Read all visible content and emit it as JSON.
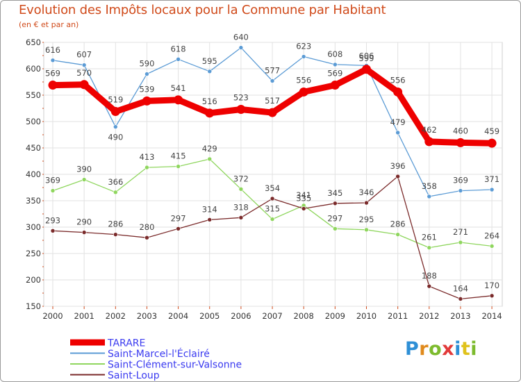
{
  "title": "Evolution des Impôts locaux pour la Commune par Habitant",
  "subtitle": "(en € et par an)",
  "brand": {
    "text": "Proxiti",
    "letter_colors": [
      "#2e8fd6",
      "#e08a1c",
      "#7dbb2e",
      "#e23a3a",
      "#2e8fd6",
      "#e0c21c",
      "#7dbb2e"
    ]
  },
  "chart_data": {
    "type": "line",
    "x": [
      "2000",
      "2001",
      "2002",
      "2003",
      "2004",
      "2005",
      "2006",
      "2007",
      "2008",
      "2009",
      "2010",
      "2011",
      "2012",
      "2013",
      "2014"
    ],
    "ylim": [
      150,
      650
    ],
    "yticks": [
      "150",
      "200",
      "250",
      "300",
      "350",
      "400",
      "450",
      "500",
      "550",
      "600",
      "650"
    ],
    "grid": true,
    "legend_position": "bottom-left",
    "series": [
      {
        "name": "Saint-Marcel-l'Éclairé",
        "color": "#5b9bd5",
        "values": [
          616,
          607,
          490,
          590,
          618,
          595,
          640,
          577,
          623,
          608,
          606,
          479,
          358,
          369,
          371
        ]
      },
      {
        "name": "Saint-Clément-sur-Valsonne",
        "color": "#8fd65e",
        "values": [
          369,
          390,
          366,
          413,
          415,
          429,
          372,
          315,
          341,
          297,
          295,
          286,
          261,
          271,
          264
        ]
      },
      {
        "name": "Saint-Loup",
        "color": "#7a2a2a",
        "values": [
          293,
          290,
          286,
          280,
          297,
          314,
          318,
          354,
          335,
          345,
          346,
          396,
          188,
          164,
          170
        ]
      },
      {
        "name": "TARARE",
        "color": "#ee0000",
        "bold": true,
        "values": [
          569,
          570,
          519,
          539,
          541,
          516,
          523,
          517,
          556,
          569,
          599,
          556,
          462,
          460,
          459
        ]
      }
    ],
    "legend_order": [
      "TARARE",
      "Saint-Marcel-l'Éclairé",
      "Saint-Clément-sur-Valsonne",
      "Saint-Loup"
    ]
  }
}
